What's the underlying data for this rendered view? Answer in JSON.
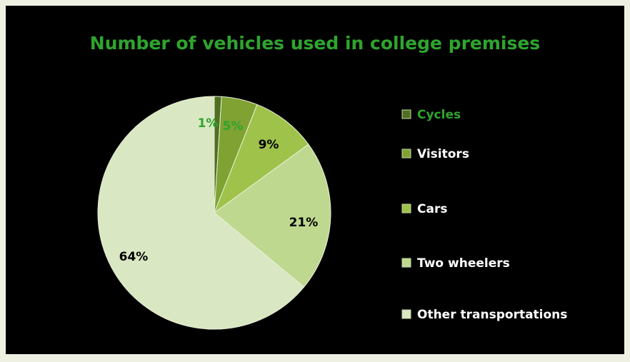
{
  "chart_data": {
    "type": "pie",
    "title": "Number of vehicles used in college premises",
    "categories": [
      "Cycles",
      "Visitors",
      "Cars",
      "Two wheelers",
      "Other transportations"
    ],
    "values": [
      1,
      5,
      9,
      21,
      64
    ],
    "value_labels": [
      "1%",
      "5%",
      "9%",
      "21%",
      "64%"
    ],
    "colors": [
      "#4f6f22",
      "#7fa233",
      "#9fc24a",
      "#bfd88f",
      "#d9e7c2"
    ],
    "value_label_colors": [
      "#2ea52e",
      "#2ea52e",
      "#000000",
      "#000000",
      "#000000"
    ],
    "legend_text_colors": [
      "#2ea52e",
      "#ffffff",
      "#ffffff",
      "#ffffff",
      "#ffffff"
    ],
    "legend": "right"
  }
}
